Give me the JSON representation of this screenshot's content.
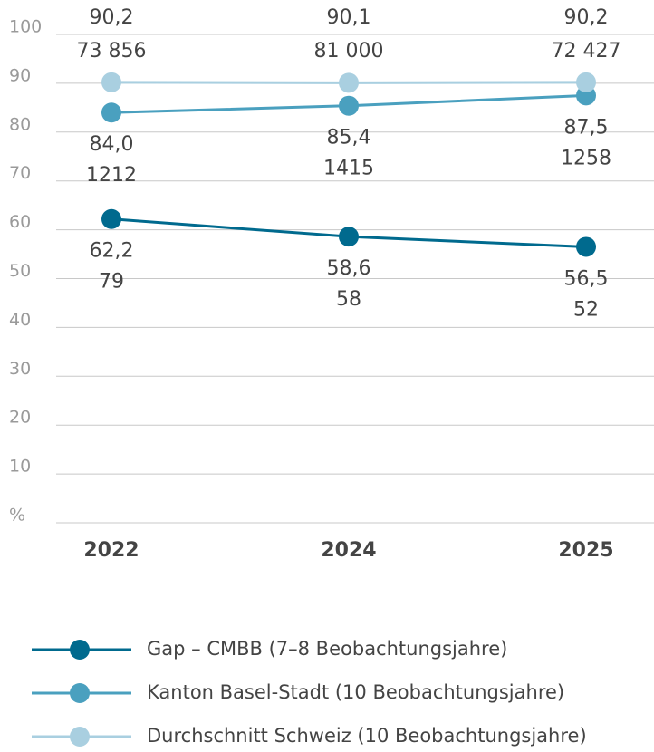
{
  "chart_data": {
    "type": "line",
    "categories": [
      "2022",
      "2024",
      "2025"
    ],
    "ylim": [
      0,
      100
    ],
    "yticks": [
      {
        "value": 0,
        "label": "%"
      },
      10,
      20,
      30,
      40,
      50,
      60,
      70,
      80,
      90,
      100
    ],
    "grid": true,
    "legend": "bottom",
    "series": [
      {
        "name": "Gap – CMBB (7–8 Beobachtungsjahre)",
        "color": "#006a8e",
        "values": [
          62.2,
          58.6,
          56.5
        ],
        "value_labels": [
          "62,2",
          "58,6",
          "56,5"
        ],
        "counts": [
          79,
          58,
          52
        ],
        "label_side": "below"
      },
      {
        "name": "Kanton Basel-Stadt (10 Beobachtungsjahre)",
        "color": "#4aa0bf",
        "values": [
          84.0,
          85.4,
          87.5
        ],
        "value_labels": [
          "84,0",
          "85,4",
          "87,5"
        ],
        "counts": [
          1212,
          1415,
          1258
        ],
        "label_side": "below"
      },
      {
        "name": "Durchschnitt Schweiz (10 Beobachtungsjahre)",
        "color": "#a9cfe0",
        "values": [
          90.2,
          90.1,
          90.2
        ],
        "value_labels": [
          "90,2",
          "90,1",
          "90,2"
        ],
        "counts": [
          73856,
          81000,
          72427
        ],
        "count_labels": [
          "73 856",
          "81 000",
          "72 427"
        ],
        "label_side": "above"
      }
    ]
  }
}
